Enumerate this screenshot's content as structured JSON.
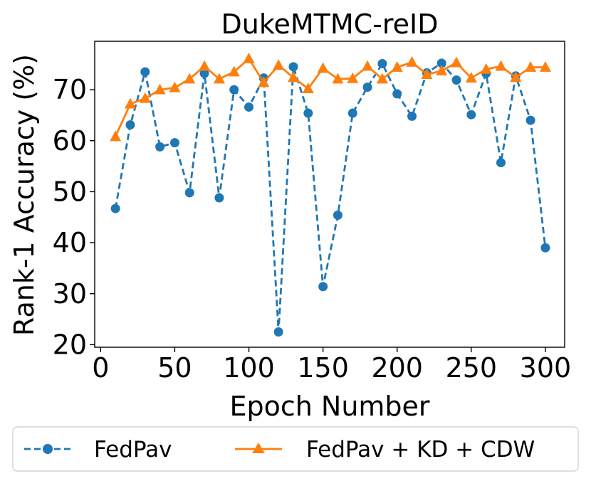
{
  "chart_data": {
    "type": "line",
    "title": "DukeMTMC-reID",
    "xlabel": "Epoch Number",
    "ylabel": "Rank-1 Accuracy (%)",
    "xlim": [
      -4,
      313
    ],
    "ylim": [
      19.5,
      79.5
    ],
    "xticks": [
      0,
      50,
      100,
      150,
      200,
      250,
      300
    ],
    "yticks": [
      20,
      30,
      40,
      50,
      60,
      70
    ],
    "x": [
      10,
      20,
      30,
      40,
      50,
      60,
      70,
      80,
      90,
      100,
      110,
      120,
      130,
      140,
      150,
      160,
      170,
      180,
      190,
      200,
      210,
      220,
      230,
      240,
      250,
      260,
      270,
      280,
      290,
      300
    ],
    "series": [
      {
        "name": "FedPav",
        "color": "#1f77b4",
        "marker": "circle",
        "linestyle": "dashed",
        "values": [
          46.7,
          63.1,
          73.5,
          58.8,
          59.6,
          49.8,
          73.2,
          48.8,
          70.0,
          66.6,
          72.3,
          22.5,
          74.5,
          65.4,
          31.4,
          45.4,
          65.4,
          70.5,
          75.1,
          69.2,
          64.8,
          73.3,
          75.2,
          71.9,
          65.1,
          73.2,
          55.7,
          72.7,
          64.0,
          39.0
        ]
      },
      {
        "name": "FedPav + KD + CDW",
        "color": "#ff7f0e",
        "marker": "triangle",
        "linestyle": "solid",
        "values": [
          60.8,
          67.2,
          68.3,
          70.0,
          70.4,
          72.1,
          74.6,
          72.1,
          73.5,
          76.1,
          71.4,
          74.8,
          72.4,
          70.2,
          74.2,
          72.1,
          72.2,
          74.6,
          72.1,
          74.4,
          75.4,
          73.0,
          73.7,
          75.3,
          72.3,
          74.0,
          74.6,
          72.4,
          74.4,
          74.4
        ]
      }
    ],
    "legend": {
      "placement": "bottom",
      "entries": [
        "FedPav",
        "FedPav + KD + CDW"
      ]
    }
  }
}
